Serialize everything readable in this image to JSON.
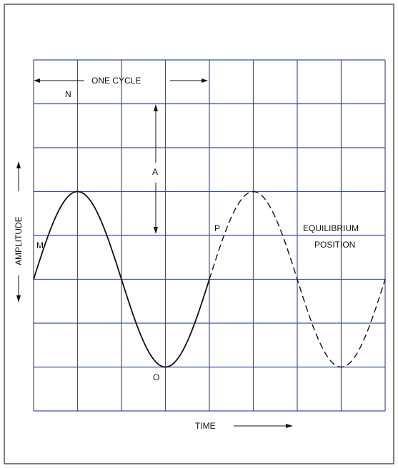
{
  "labels": {
    "one_cycle": "ONE  CYCLE",
    "n": "N",
    "m": "M",
    "o": "O",
    "p": "P",
    "a": "A",
    "equilibrium_line1": "EQUILIBRIUM",
    "equilibrium_line2": "POSITION",
    "amplitude": "AMPLITUDE",
    "time": "TIME"
  },
  "colors": {
    "grid": "#3d4fa6",
    "frame": "#555555",
    "wave": "#111111",
    "text": "#111111"
  },
  "chart_data": {
    "type": "line",
    "series": [
      {
        "style": "solid",
        "x": [
          0,
          0.25,
          0.5,
          0.75,
          1.0
        ]
      },
      {
        "style": "dashed",
        "x": [
          1.0,
          1.25,
          1.5,
          1.75,
          2.0
        ]
      }
    ],
    "function": "sine",
    "xlim": [
      0,
      2
    ],
    "ylim": [
      -1.5,
      2.5
    ],
    "grid": true,
    "grid_columns": 8,
    "grid_rows": 8
  }
}
